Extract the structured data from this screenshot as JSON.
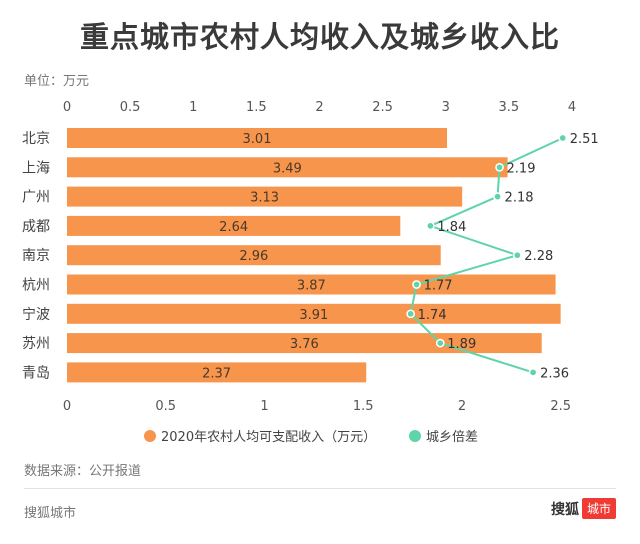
{
  "header": {
    "title": "重点城市农村人均收入及城乡收入比",
    "unit": "单位：万元"
  },
  "footer": {
    "source": "数据来源：公开报道",
    "site": "搜狐城市",
    "brand_name": "搜狐",
    "brand_badge": "城市"
  },
  "chart_data": {
    "type": "bar",
    "categories": [
      "北京",
      "上海",
      "广州",
      "成都",
      "南京",
      "杭州",
      "宁波",
      "苏州",
      "青岛"
    ],
    "series": [
      {
        "name": "2020年农村人均可支配收入（万元）",
        "type": "bar",
        "axis": "top",
        "color": "#f7954c",
        "values": [
          3.01,
          3.49,
          3.13,
          2.64,
          2.96,
          3.87,
          3.91,
          3.76,
          2.37
        ]
      },
      {
        "name": "城乡倍差",
        "type": "line",
        "axis": "bottom",
        "color": "#5fd4a8",
        "values": [
          2.51,
          2.19,
          2.18,
          1.84,
          2.28,
          1.77,
          1.74,
          1.89,
          2.36
        ]
      }
    ],
    "top_axis": {
      "range": [
        0,
        4
      ],
      "ticks": [
        "0",
        "0.5",
        "1",
        "1.5",
        "2",
        "2.5",
        "3",
        "3.5",
        "4"
      ]
    },
    "bottom_axis": {
      "range": [
        0,
        2.5
      ],
      "ticks": [
        "0",
        "0.5",
        "1",
        "1.5",
        "2",
        "2.5"
      ]
    },
    "grid": false,
    "legend_position": "bottom"
  }
}
